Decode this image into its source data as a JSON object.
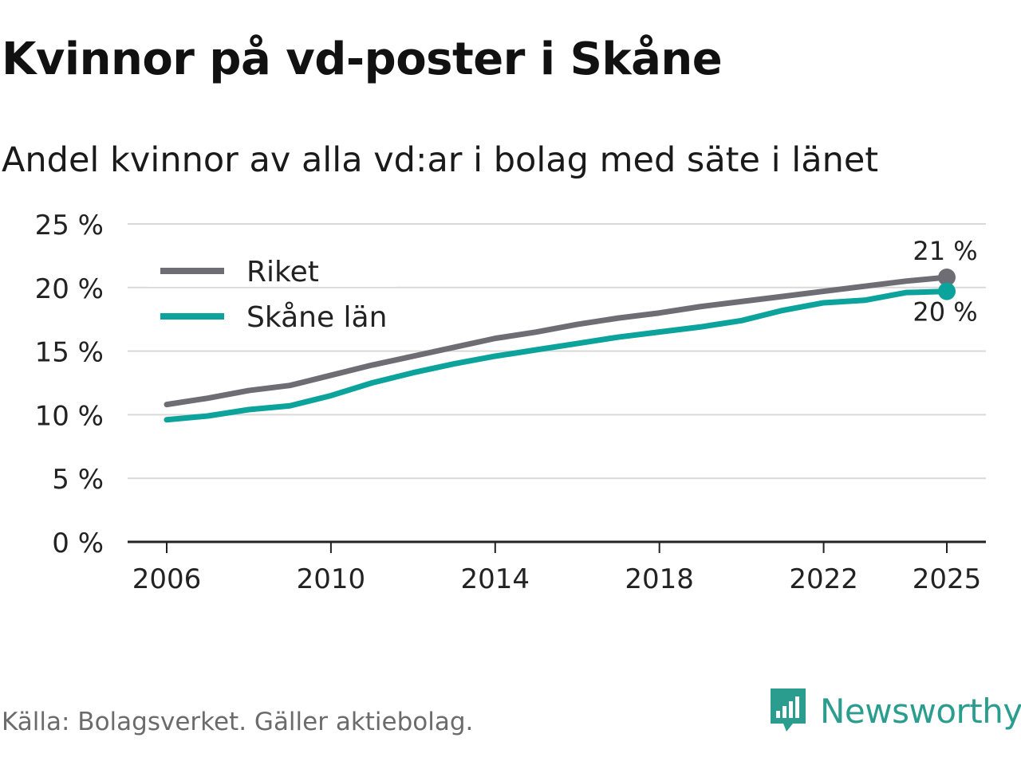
{
  "header": {
    "title": "Kvinnor på vd-poster i Skåne",
    "subtitle": "Andel kvinnor av alla vd:ar i bolag med säte i länet"
  },
  "footer": {
    "source": "Källa: Bolagsverket. Gäller aktiebolag.",
    "brand": "Newsworthy"
  },
  "chart_data": {
    "type": "line",
    "title": "Kvinnor på vd-poster i Skåne",
    "subtitle": "Andel kvinnor av alla vd:ar i bolag med säte i länet",
    "xlabel": "",
    "ylabel": "",
    "x": [
      2006,
      2007,
      2008,
      2009,
      2010,
      2011,
      2012,
      2013,
      2014,
      2015,
      2016,
      2017,
      2018,
      2019,
      2020,
      2021,
      2022,
      2023,
      2024,
      2025
    ],
    "x_ticks": [
      "2006",
      "2010",
      "2014",
      "2018",
      "2022",
      "2025"
    ],
    "ylim": [
      0,
      25
    ],
    "y_ticks": [
      "0 %",
      "5 %",
      "10 %",
      "15 %",
      "20 %",
      "25 %"
    ],
    "grid": true,
    "legend_position": "top-left",
    "series": [
      {
        "name": "Riket",
        "color": "#6e6d74",
        "values": [
          10.8,
          11.3,
          11.9,
          12.3,
          13.1,
          13.9,
          14.6,
          15.3,
          16.0,
          16.5,
          17.1,
          17.6,
          18.0,
          18.5,
          18.9,
          19.3,
          19.7,
          20.1,
          20.5,
          20.8
        ],
        "end_label": "21 %"
      },
      {
        "name": "Skåne län",
        "color": "#0ba39b",
        "values": [
          9.6,
          9.9,
          10.4,
          10.7,
          11.5,
          12.5,
          13.3,
          14.0,
          14.6,
          15.1,
          15.6,
          16.1,
          16.5,
          16.9,
          17.4,
          18.2,
          18.8,
          19.0,
          19.6,
          19.7
        ],
        "end_label": "20 %"
      }
    ]
  }
}
